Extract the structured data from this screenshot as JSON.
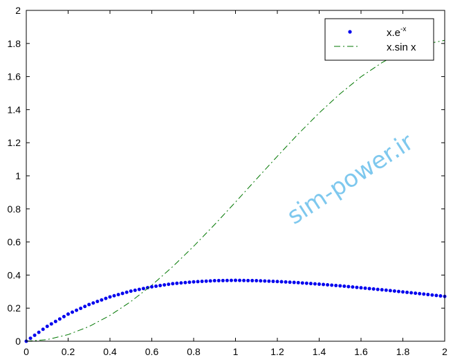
{
  "chart_data": {
    "type": "line",
    "title": "",
    "xlabel": "",
    "ylabel": "",
    "xlim": [
      0,
      2
    ],
    "ylim": [
      0,
      2
    ],
    "grid": false,
    "legend_position": "top-right",
    "x_ticks": [
      "0",
      "0.2",
      "0.4",
      "0.6",
      "0.8",
      "1",
      "1.2",
      "1.4",
      "1.6",
      "1.8",
      "2"
    ],
    "y_ticks": [
      "0",
      "0.2",
      "0.4",
      "0.6",
      "0.8",
      "1",
      "1.2",
      "1.4",
      "1.6",
      "1.8",
      "2"
    ],
    "series": [
      {
        "name": "x.e",
        "name_superscript": "-x",
        "style": "dots",
        "color": "#0000ee",
        "x": [
          0,
          0.1,
          0.2,
          0.3,
          0.4,
          0.5,
          0.6,
          0.7,
          0.8,
          0.9,
          1.0,
          1.1,
          1.2,
          1.3,
          1.4,
          1.5,
          1.6,
          1.7,
          1.8,
          1.9,
          2.0
        ],
        "y": [
          0,
          0.09,
          0.164,
          0.222,
          0.268,
          0.303,
          0.329,
          0.348,
          0.359,
          0.366,
          0.368,
          0.366,
          0.361,
          0.354,
          0.345,
          0.335,
          0.323,
          0.311,
          0.298,
          0.285,
          0.271
        ]
      },
      {
        "name": "x.sin x",
        "style": "dash-dot",
        "color": "#007700",
        "x": [
          0,
          0.1,
          0.2,
          0.3,
          0.4,
          0.5,
          0.6,
          0.7,
          0.8,
          0.9,
          1.0,
          1.1,
          1.2,
          1.3,
          1.4,
          1.5,
          1.6,
          1.7,
          1.8,
          1.9,
          2.0
        ],
        "y": [
          0,
          0.01,
          0.04,
          0.089,
          0.156,
          0.24,
          0.339,
          0.451,
          0.574,
          0.705,
          0.841,
          0.98,
          1.118,
          1.253,
          1.38,
          1.496,
          1.599,
          1.684,
          1.753,
          1.794,
          1.819
        ]
      }
    ]
  },
  "watermark": "sim-power.ir"
}
